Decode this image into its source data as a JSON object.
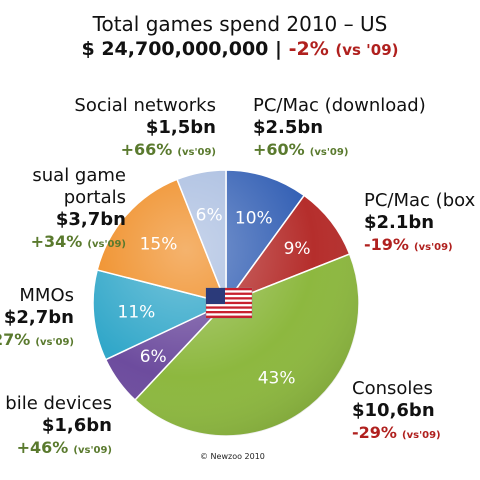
{
  "title": "Total games spend 2010 – US",
  "total_value": "$ 24,700,000,000",
  "total_sep": "|",
  "total_change": "-2%",
  "total_vs": "(vs '09)",
  "copyright": "© Newzoo 2010",
  "colors": {
    "positive": "#5a7a2e",
    "negative": "#b0201e",
    "social": "#a9bde0",
    "pc_download": "#3561b5",
    "pc_box": "#b52e2c",
    "consoles": "#8db83f",
    "mobile": "#6d4c9e",
    "mmos": "#31a7c9",
    "casual": "#ef8a1f"
  },
  "labels": [
    {
      "id": "social",
      "name": "Social networks",
      "value": "$1,5bn",
      "change": "+66%",
      "vs": "(vs'09)"
    },
    {
      "id": "pc_download",
      "name": "PC/Mac (download)",
      "value": "$2.5bn",
      "change": "+60%",
      "vs": "(vs'09)"
    },
    {
      "id": "pc_box",
      "name": "PC/Mac (box",
      "value": "$2.1bn",
      "change": "-19%",
      "vs": "(vs'09)"
    },
    {
      "id": "consoles",
      "name": "Consoles",
      "value": "$10,6bn",
      "change": "-29%",
      "vs": "(vs'09)"
    },
    {
      "id": "mobile",
      "name": "bile devices",
      "value": "$1,6bn",
      "change": "+46%",
      "vs": "(vs'09)"
    },
    {
      "id": "mmos",
      "name": "MMOs",
      "value": "$2,7bn",
      "change": "27%",
      "vs": "(vs'09)"
    },
    {
      "id": "casual",
      "name": "sual game portals",
      "name_line1": "sual game",
      "name_line2": "portals",
      "value": "$3,7bn",
      "change": "+34%",
      "vs": "(vs'09)"
    }
  ],
  "chart_data": {
    "type": "pie",
    "title": "Total games spend 2010 – US",
    "start": "12 o'clock, clockwise",
    "slices": [
      {
        "label": "PC/Mac (download)",
        "value": 10,
        "display": "10%",
        "color": "#3561b5"
      },
      {
        "label": "PC/Mac (box",
        "value": 9,
        "display": "9%",
        "color": "#b52e2c"
      },
      {
        "label": "Consoles",
        "value": 43,
        "display": "43%",
        "color": "#8db83f"
      },
      {
        "label": "bile devices",
        "value": 6,
        "display": "6%",
        "color": "#6d4c9e"
      },
      {
        "label": "MMOs",
        "value": 11,
        "display": "11%",
        "color": "#31a7c9"
      },
      {
        "label": "sual game portals",
        "value": 15,
        "display": "15%",
        "color": "#ef8a1f"
      },
      {
        "label": "Social networks",
        "value": 6,
        "display": "6%",
        "color": "#a9bde0"
      }
    ]
  }
}
